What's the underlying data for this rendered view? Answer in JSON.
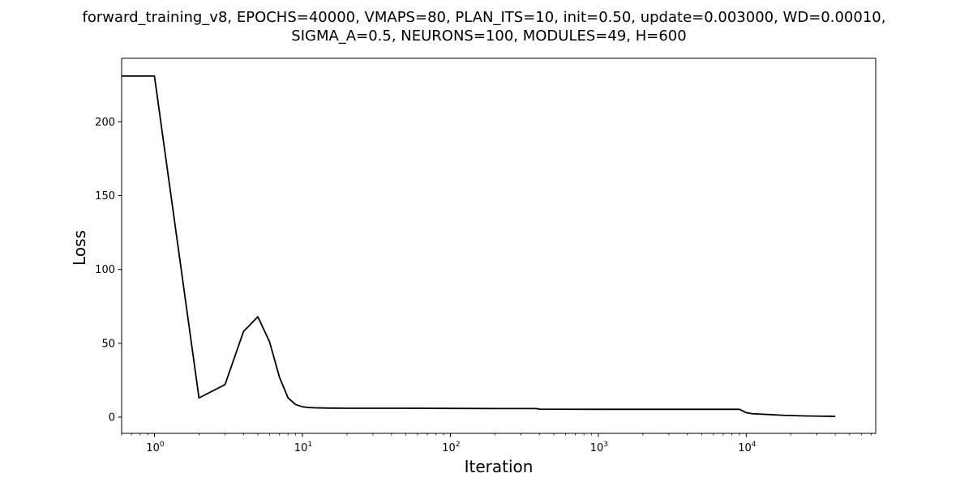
{
  "chart_data": {
    "type": "line",
    "title": "forward_training_v8, EPOCHS=40000, VMAPS=80, PLAN_ITS=10, init=0.50, update=0.003000, WD=0.00010,",
    "subtitle": "SIGMA_A=0.5, NEURONS=100, MODULES=49, H=600",
    "xlabel": "Iteration",
    "ylabel": "Loss",
    "xscale": "log",
    "xlim": [
      0.6,
      75000
    ],
    "ylim": [
      -11,
      243
    ],
    "grid": false,
    "line_color": "#000000",
    "x_ticks": [
      {
        "value": 1,
        "base": "10",
        "exp": "0"
      },
      {
        "value": 10,
        "base": "10",
        "exp": "1"
      },
      {
        "value": 100,
        "base": "10",
        "exp": "2"
      },
      {
        "value": 1000,
        "base": "10",
        "exp": "3"
      },
      {
        "value": 10000,
        "base": "10",
        "exp": "4"
      }
    ],
    "y_ticks": [
      0,
      50,
      100,
      150,
      200
    ],
    "series": [
      {
        "x": [
          0.6,
          1,
          2,
          3,
          4,
          5,
          6,
          7,
          8,
          9,
          10,
          11,
          12,
          15,
          20,
          30,
          50,
          100,
          200,
          380,
          400,
          1000,
          3000,
          8000,
          9000,
          10000,
          11000,
          14000,
          18000,
          25000,
          40000
        ],
        "y": [
          231,
          231,
          13,
          22,
          58,
          68,
          51,
          27,
          13,
          8.5,
          7,
          6.5,
          6.3,
          6.1,
          6,
          6,
          6,
          5.9,
          5.8,
          5.8,
          5.4,
          5.3,
          5.3,
          5.3,
          5.3,
          3,
          2.3,
          1.8,
          1.2,
          0.8,
          0.5
        ]
      }
    ]
  }
}
